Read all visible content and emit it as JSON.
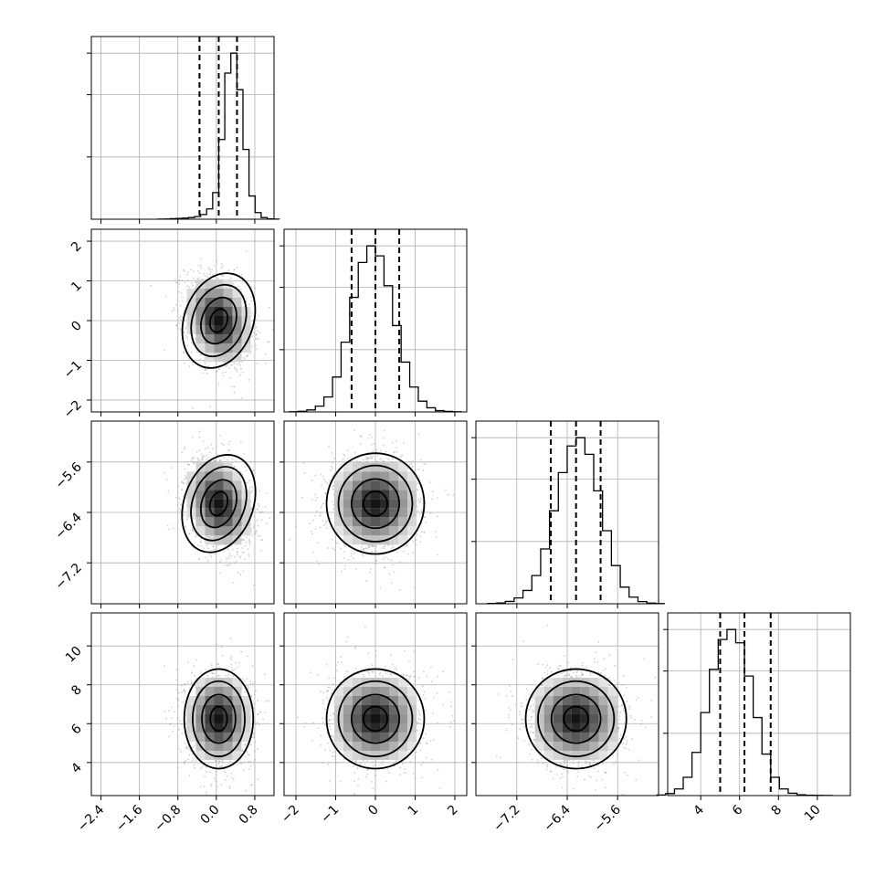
{
  "chart_data": {
    "type": "corner",
    "n_params": 4,
    "colors": {
      "line": "#000000",
      "grid": "#b0b0b0",
      "scatter": "#9a9a9a"
    },
    "grid": true,
    "params": [
      {
        "range": [
          -2.6,
          1.2
        ],
        "ticks": [
          -2.4,
          -1.6,
          -0.8,
          0.0,
          0.8
        ],
        "tick_labels": [
          "−2.4",
          "−1.6",
          "−0.8",
          "0.0",
          "0.8"
        ],
        "quantiles": [
          -0.35,
          0.05,
          0.43
        ],
        "mean": 0.05,
        "sd": 0.35
      },
      {
        "range": [
          -2.3,
          2.3
        ],
        "ticks": [
          -2,
          -1,
          0,
          1,
          2
        ],
        "tick_labels": [
          "−2",
          "−1",
          "0",
          "1",
          "2"
        ],
        "quantiles": [
          -0.6,
          0.0,
          0.6
        ],
        "mean": 0.0,
        "sd": 0.6
      },
      {
        "range": [
          -7.85,
          -4.95
        ],
        "ticks": [
          -7.2,
          -6.4,
          -5.6
        ],
        "tick_labels": [
          "−7.2",
          "−6.4",
          "−5.6"
        ],
        "quantiles": [
          -6.66,
          -6.26,
          -5.87
        ],
        "mean": -6.26,
        "sd": 0.39
      },
      {
        "range": [
          2.3,
          11.7
        ],
        "ticks": [
          4,
          6,
          8,
          10
        ],
        "tick_labels": [
          "4",
          "6",
          "8",
          "10"
        ],
        "quantiles": [
          5.0,
          6.25,
          7.6
        ],
        "mean": 6.25,
        "sd": 1.25
      }
    ],
    "histograms": [
      {
        "param": 0,
        "bins": 20,
        "counts": [
          0.5,
          1.5,
          3,
          5,
          7,
          10,
          16,
          28,
          62,
          160,
          480,
          880,
          1000,
          780,
          420,
          140,
          40,
          10,
          2,
          0.5
        ]
      },
      {
        "param": 1,
        "bins": 20,
        "counts": [
          1,
          4,
          12,
          35,
          90,
          210,
          420,
          690,
          900,
          1000,
          940,
          760,
          520,
          300,
          150,
          65,
          25,
          8,
          3,
          1
        ]
      },
      {
        "param": 2,
        "bins": 20,
        "counts": [
          2,
          5,
          14,
          35,
          80,
          170,
          330,
          560,
          790,
          950,
          1000,
          900,
          680,
          440,
          230,
          100,
          40,
          13,
          4,
          1
        ]
      },
      {
        "param": 3,
        "bins": 20,
        "counts": [
          3,
          12,
          40,
          110,
          260,
          500,
          760,
          940,
          1000,
          920,
          720,
          470,
          250,
          110,
          40,
          14,
          5,
          2,
          1,
          0.5
        ]
      }
    ],
    "pairs": [
      {
        "x": 0,
        "y": 1,
        "rho": -0.25
      },
      {
        "x": 0,
        "y": 2,
        "rho": -0.25
      },
      {
        "x": 1,
        "y": 2,
        "rho": 0.0
      },
      {
        "x": 0,
        "y": 3,
        "rho": 0.0
      },
      {
        "x": 1,
        "y": 3,
        "rho": 0.0
      },
      {
        "x": 2,
        "y": 3,
        "rho": 0.0
      }
    ]
  }
}
